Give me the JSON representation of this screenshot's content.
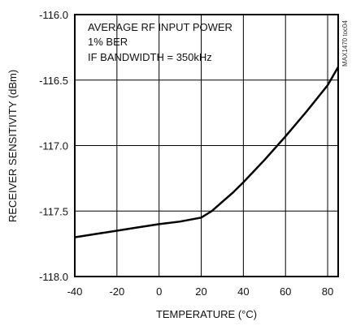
{
  "chart_data": {
    "type": "line",
    "title": "",
    "xlabel": "TEMPERATURE (°C)",
    "ylabel": "RECEIVER SENSITIVITY (dBm)",
    "xlim": [
      -40,
      85
    ],
    "ylim": [
      -118.0,
      -116.0
    ],
    "xticks": [
      -40,
      -20,
      0,
      20,
      40,
      60,
      80
    ],
    "xtick_labels": [
      "-40",
      "-20",
      "0",
      "20",
      "40",
      "60",
      "80"
    ],
    "yticks": [
      -116.0,
      -116.5,
      -117.0,
      -117.5,
      -118.0
    ],
    "ytick_labels": [
      "-116.0",
      "-116.5",
      "-117.0",
      "-117.5",
      "-118.0"
    ],
    "grid": true,
    "annotation_lines": [
      "AVERAGE RF INPUT POWER",
      "1% BER",
      "IF BANDWIDTH = 350kHz"
    ],
    "side_label": "MAX1470 toc04",
    "series": [
      {
        "x": [
          -40,
          -30,
          -20,
          -10,
          0,
          10,
          20,
          25,
          30,
          35,
          40,
          50,
          60,
          70,
          80,
          85
        ],
        "values": [
          -117.7,
          -117.675,
          -117.65,
          -117.625,
          -117.6,
          -117.58,
          -117.55,
          -117.5,
          -117.43,
          -117.36,
          -117.28,
          -117.11,
          -116.93,
          -116.74,
          -116.54,
          -116.4
        ]
      }
    ]
  }
}
